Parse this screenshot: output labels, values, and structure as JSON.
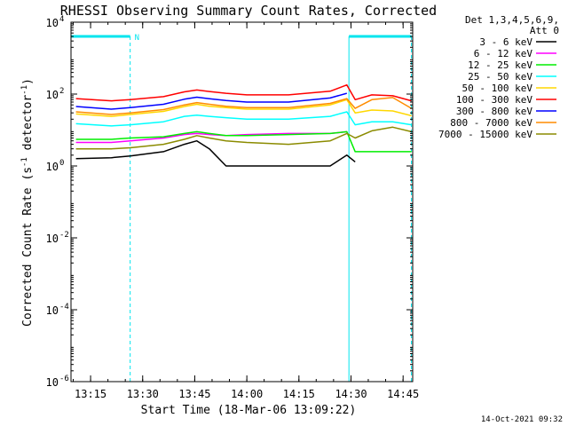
{
  "chart_data": {
    "type": "line",
    "title": "RHESSI Observing Summary Count Rates, Corrected",
    "xlabel": "Start Time (18-Mar-06 13:09:22)",
    "ylabel": "Corrected Count Rate (s⁻¹ detector⁻¹)",
    "ylabel_parts": [
      "Corrected Count Rate (s",
      "-1",
      " detector",
      "-1",
      ")"
    ],
    "yscale": "log",
    "xlim": [
      13.156,
      14.796
    ],
    "ylim": [
      1e-06,
      10000.0
    ],
    "x_ticks": [
      {
        "value": 13.25,
        "label": "13:15"
      },
      {
        "value": 13.5,
        "label": "13:30"
      },
      {
        "value": 13.75,
        "label": "13:45"
      },
      {
        "value": 14.0,
        "label": "14:00"
      },
      {
        "value": 14.25,
        "label": "14:15"
      },
      {
        "value": 14.5,
        "label": "14:30"
      },
      {
        "value": 14.75,
        "label": "14:45"
      }
    ],
    "y_ticks": [
      {
        "exp": 4,
        "label": "10",
        "sup": "4"
      },
      {
        "exp": 2,
        "label": "10",
        "sup": "2"
      },
      {
        "exp": 0,
        "label": "10",
        "sup": "0"
      },
      {
        "exp": -2,
        "label": "10",
        "sup": "-2"
      },
      {
        "exp": -4,
        "label": "10",
        "sup": "-4"
      },
      {
        "exp": -6,
        "label": "10",
        "sup": "-6"
      }
    ],
    "legend_header": [
      "Det 1,3,4,5,6,9,",
      "Att 0"
    ],
    "legend_position": "right",
    "night_intervals": [
      [
        13.156,
        13.44
      ],
      [
        14.49,
        14.79
      ]
    ],
    "saa_label": "N",
    "colors": {
      "night": "#00e5ee",
      "axis": "#000000"
    },
    "series": [
      {
        "name": "3 - 6 keV",
        "color": "#000000",
        "x": [
          13.18,
          13.35,
          13.44,
          13.6,
          13.7,
          13.76,
          13.82,
          13.9,
          14.0,
          14.2,
          14.4,
          14.48,
          14.52
        ],
        "y": [
          1.6,
          1.7,
          1.9,
          2.5,
          4.0,
          5.0,
          3.0,
          1.0,
          1.0,
          1.0,
          1.0,
          2.0,
          1.3
        ]
      },
      {
        "name": "6 - 12 keV",
        "color": "#ff00ff",
        "x": [
          13.18,
          13.35,
          13.44,
          13.6,
          13.7,
          13.76,
          13.82,
          13.9,
          14.0,
          14.2,
          14.4,
          14.48
        ],
        "y": [
          4.5,
          4.5,
          5.0,
          6.0,
          7.5,
          8.0,
          7.5,
          7.0,
          7.5,
          8.0,
          8.0,
          9.0
        ]
      },
      {
        "name": "12 - 25 keV",
        "color": "#00ee00",
        "x": [
          13.18,
          13.35,
          13.44,
          13.6,
          13.7,
          13.76,
          13.82,
          13.9,
          14.0,
          14.2,
          14.4,
          14.48,
          14.52,
          14.7,
          14.79
        ],
        "y": [
          5.5,
          5.5,
          6.0,
          6.5,
          8.0,
          9.0,
          8.0,
          7.0,
          7.0,
          7.5,
          8.0,
          9.0,
          2.5,
          2.5,
          2.5
        ]
      },
      {
        "name": "25 - 50 keV",
        "color": "#00ffff",
        "x": [
          13.18,
          13.35,
          13.44,
          13.6,
          13.7,
          13.76,
          13.82,
          13.9,
          14.0,
          14.2,
          14.4,
          14.48,
          14.52,
          14.6,
          14.7,
          14.79
        ],
        "y": [
          15,
          13,
          14,
          17,
          24,
          26,
          24,
          22,
          20,
          20,
          24,
          32,
          14,
          17,
          17,
          14
        ]
      },
      {
        "name": "50 - 100 keV",
        "color": "#ffd700",
        "x": [
          13.18,
          13.35,
          13.44,
          13.6,
          13.7,
          13.76,
          13.82,
          13.9,
          14.0,
          14.2,
          14.4,
          14.48,
          14.52,
          14.6,
          14.7,
          14.79
        ],
        "y": [
          28,
          24,
          27,
          33,
          45,
          52,
          46,
          42,
          38,
          38,
          50,
          70,
          30,
          36,
          34,
          25
        ]
      },
      {
        "name": "100 - 300 keV",
        "color": "#ff0000",
        "x": [
          13.18,
          13.35,
          13.44,
          13.6,
          13.7,
          13.76,
          13.82,
          13.9,
          14.0,
          14.2,
          14.4,
          14.48,
          14.52,
          14.6,
          14.7,
          14.79
        ],
        "y": [
          75,
          65,
          70,
          85,
          115,
          130,
          118,
          105,
          95,
          95,
          120,
          180,
          70,
          95,
          90,
          65
        ]
      },
      {
        "name": "300 - 800 keV",
        "color": "#0000ff",
        "x": [
          13.18,
          13.35,
          13.44,
          13.6,
          13.7,
          13.76,
          13.82,
          13.9,
          14.0,
          14.2,
          14.4,
          14.48
        ],
        "y": [
          45,
          38,
          42,
          52,
          72,
          82,
          74,
          66,
          60,
          60,
          78,
          105
        ]
      },
      {
        "name": "800 - 7000 keV",
        "color": "#ff8c00",
        "x": [
          13.18,
          13.35,
          13.44,
          13.6,
          13.7,
          13.76,
          13.82,
          13.9,
          14.0,
          14.2,
          14.4,
          14.48,
          14.52,
          14.6,
          14.7,
          14.79
        ],
        "y": [
          32,
          27,
          30,
          37,
          50,
          58,
          52,
          46,
          42,
          42,
          55,
          75,
          40,
          70,
          80,
          40
        ]
      },
      {
        "name": "7000 - 15000 keV",
        "color": "#8b8b00",
        "x": [
          13.18,
          13.35,
          13.44,
          13.6,
          13.7,
          13.76,
          13.82,
          13.9,
          14.0,
          14.2,
          14.4,
          14.48,
          14.52,
          14.6,
          14.7,
          14.79
        ],
        "y": [
          3.0,
          3.0,
          3.2,
          4.0,
          5.5,
          7.0,
          6.0,
          5.0,
          4.5,
          4.0,
          5.0,
          8.0,
          6.0,
          9.5,
          12,
          9.0
        ]
      }
    ]
  },
  "footer": {
    "timestamp": "14-Oct-2021 09:32"
  }
}
